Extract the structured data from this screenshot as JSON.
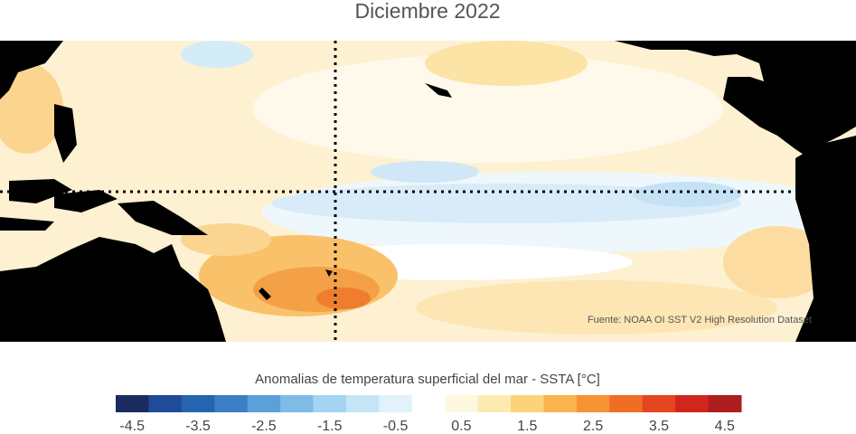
{
  "header": {
    "title": "Diciembre 2022"
  },
  "map": {
    "source": "Fuente: NOAA OI SST V2 High Resolution Dataset"
  },
  "colorbar": {
    "label": "Anomalias de temperatura superficial del mar - SSTA  [°C]",
    "levels": [
      -4.5,
      -4,
      -3.5,
      -3,
      -2.5,
      -2,
      -1.5,
      -1,
      -0.5,
      0,
      0.5,
      1,
      1.5,
      2,
      2.5,
      3,
      3.5,
      4,
      4.5
    ],
    "colors": [
      "#1b2b5f",
      "#1f4b98",
      "#2565b0",
      "#3a7ec6",
      "#5aa0d9",
      "#7ebce8",
      "#a3d4f2",
      "#c5e5f6",
      "#e2f2fa",
      "#ffffff",
      "#fef8df",
      "#fdeab0",
      "#fcd37b",
      "#f9b44f",
      "#f59430",
      "#ef6e23",
      "#e4461f",
      "#cf261d",
      "#ae1d1d"
    ],
    "ticks": [
      -4.5,
      -3.5,
      -2.5,
      -1.5,
      -0.5,
      0.5,
      1.5,
      2.5,
      3.5,
      4.5
    ]
  }
}
